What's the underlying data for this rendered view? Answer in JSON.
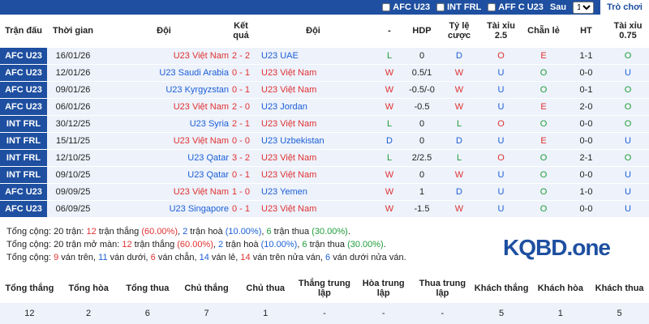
{
  "filters": {
    "options": [
      "AFC U23",
      "INT FRL",
      "AFF C U23"
    ],
    "after_label": "Sau",
    "count": "10",
    "button": "Trò chơi"
  },
  "table": {
    "headers": [
      "Trận đấu",
      "Thời gian",
      "Đội",
      "Kết quả",
      "Đội",
      "-",
      "HDP",
      "Tỷ lệ cược",
      "Tài xỉu 2.5",
      "Chẵn lẻ",
      "HT",
      "Tài xỉu 0.75"
    ],
    "rows": [
      [
        "AFC U23",
        "16/01/26",
        "U23 Việt Nam",
        "2 - 2",
        "U23 UAE",
        "L",
        "0",
        "D",
        "O",
        "E",
        "1-1",
        "O"
      ],
      [
        "AFC U23",
        "12/01/26",
        "U23 Saudi Arabia",
        "0 - 1",
        "U23 Việt Nam",
        "W",
        "0.5/1",
        "W",
        "U",
        "O",
        "0-0",
        "U"
      ],
      [
        "AFC U23",
        "09/01/26",
        "U23 Kyrgyzstan",
        "0 - 1",
        "U23 Việt Nam",
        "W",
        "-0.5/-0",
        "W",
        "U",
        "O",
        "0-1",
        "O"
      ],
      [
        "AFC U23",
        "06/01/26",
        "U23 Việt Nam",
        "2 - 0",
        "U23 Jordan",
        "W",
        "-0.5",
        "W",
        "U",
        "E",
        "2-0",
        "O"
      ],
      [
        "INT FRL",
        "30/12/25",
        "U23 Syria",
        "2 - 1",
        "U23 Việt Nam",
        "L",
        "0",
        "L",
        "O",
        "O",
        "0-0",
        "O"
      ],
      [
        "INT FRL",
        "15/11/25",
        "U23 Việt Nam",
        "0 - 0",
        "U23 Uzbekistan",
        "D",
        "0",
        "D",
        "U",
        "E",
        "0-0",
        "U"
      ],
      [
        "INT FRL",
        "12/10/25",
        "U23 Qatar",
        "3 - 2",
        "U23 Việt Nam",
        "L",
        "2/2.5",
        "L",
        "O",
        "O",
        "2-1",
        "O"
      ],
      [
        "INT FRL",
        "09/10/25",
        "U23 Qatar",
        "0 - 1",
        "U23 Việt Nam",
        "W",
        "0",
        "W",
        "U",
        "O",
        "0-0",
        "U"
      ],
      [
        "AFC U23",
        "09/09/25",
        "U23 Việt Nam",
        "1 - 0",
        "U23 Yemen",
        "W",
        "1",
        "D",
        "U",
        "O",
        "1-0",
        "U"
      ],
      [
        "AFC U23",
        "06/09/25",
        "U23 Singapore",
        "0 - 1",
        "U23 Việt Nam",
        "W",
        "-1.5",
        "W",
        "U",
        "O",
        "0-0",
        "U"
      ]
    ]
  },
  "summary": {
    "lines": [
      [
        {
          "text": "Tổng cộng: 20 trận: "
        },
        {
          "text": "12",
          "color": "#e03131"
        },
        {
          "text": " trận thắng "
        },
        {
          "text": "(60.00%)",
          "color": "#e03131"
        },
        {
          "text": ", "
        },
        {
          "text": "2",
          "color": "#1c5fd6"
        },
        {
          "text": " trận hoà "
        },
        {
          "text": "(10.00%)",
          "color": "#1c5fd6"
        },
        {
          "text": ", "
        },
        {
          "text": "6",
          "color": "#1f9d3a"
        },
        {
          "text": " trận thua "
        },
        {
          "text": "(30.00%)",
          "color": "#1f9d3a"
        },
        {
          "text": "."
        }
      ],
      [
        {
          "text": "Tổng cộng: 20 trận mở màn: "
        },
        {
          "text": "12",
          "color": "#e03131"
        },
        {
          "text": " trận thắng "
        },
        {
          "text": "(60.00%)",
          "color": "#e03131"
        },
        {
          "text": ", "
        },
        {
          "text": "2",
          "color": "#1c5fd6"
        },
        {
          "text": " trận hoà "
        },
        {
          "text": "(10.00%)",
          "color": "#1c5fd6"
        },
        {
          "text": ", "
        },
        {
          "text": "6",
          "color": "#1f9d3a"
        },
        {
          "text": " trận thua "
        },
        {
          "text": "(30.00%)",
          "color": "#1f9d3a"
        },
        {
          "text": "."
        }
      ],
      [
        {
          "text": "Tổng cộng: "
        },
        {
          "text": "9",
          "color": "#e03131"
        },
        {
          "text": " ván trên, "
        },
        {
          "text": "11",
          "color": "#1c5fd6"
        },
        {
          "text": " ván dưới, "
        },
        {
          "text": "6",
          "color": "#e03131"
        },
        {
          "text": " ván chẵn, "
        },
        {
          "text": "14",
          "color": "#1c5fd6"
        },
        {
          "text": " ván lẻ, "
        },
        {
          "text": "14",
          "color": "#e03131"
        },
        {
          "text": " ván trên nửa ván, "
        },
        {
          "text": "6",
          "color": "#1c5fd6"
        },
        {
          "text": " ván dưới nửa ván."
        }
      ]
    ]
  },
  "logo": "KQBD.one",
  "totals": {
    "headers": [
      "Tổng thắng",
      "Tổng hòa",
      "Tổng thua",
      "Chủ thắng",
      "Chủ thua",
      "Thắng trung lập",
      "Hòa trung lập",
      "Thua trung lập",
      "Khách thắng",
      "Khách hòa",
      "Khách thua"
    ],
    "values": [
      12,
      2,
      6,
      7,
      1,
      "-",
      "-",
      "-",
      5,
      1,
      5
    ]
  }
}
